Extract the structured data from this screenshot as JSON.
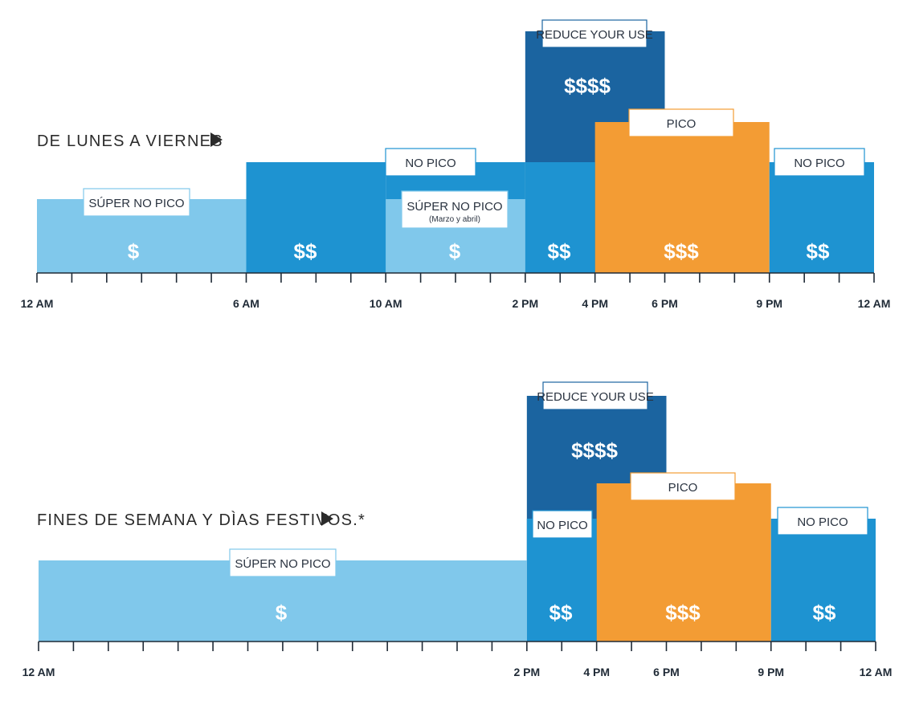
{
  "chart_data": [
    {
      "type": "bar",
      "title": "DE LUNES A VIERNES",
      "x_unit": "hour of day",
      "xlim": [
        0,
        24
      ],
      "ticks": [
        0,
        1,
        2,
        3,
        4,
        5,
        6,
        7,
        8,
        9,
        10,
        11,
        12,
        13,
        14,
        15,
        16,
        17,
        18,
        19,
        20,
        21,
        22,
        23,
        24
      ],
      "tick_labels": [
        {
          "hour": 0,
          "label": "12 AM"
        },
        {
          "hour": 6,
          "label": "6 AM"
        },
        {
          "hour": 10,
          "label": "10 AM"
        },
        {
          "hour": 14,
          "label": "2 PM"
        },
        {
          "hour": 16,
          "label": "4 PM"
        },
        {
          "hour": 18,
          "label": "6 PM"
        },
        {
          "hour": 21,
          "label": "9 PM"
        },
        {
          "hour": 24,
          "label": "12 AM"
        }
      ],
      "ylim": [
        0,
        4
      ],
      "segments": [
        {
          "start": 0,
          "end": 6,
          "level": 1,
          "color": "#80c8eb",
          "price": "$",
          "label": "SÚPER NO PICO",
          "sub": ""
        },
        {
          "start": 6,
          "end": 10,
          "level": 2,
          "color": "#1e93d1",
          "price": "$$",
          "label": "",
          "sub": ""
        },
        {
          "start": 10,
          "end": 14,
          "level": 2,
          "color": "#1e93d1",
          "price": "",
          "label": "NO PICO",
          "sub": ""
        },
        {
          "start": 10,
          "end": 14,
          "level": 1,
          "color": "#80c8eb",
          "price": "$",
          "label": "SÚPER NO PICO",
          "sub": "(Marzo y abril)"
        },
        {
          "start": 14,
          "end": 16,
          "level": 2,
          "color": "#1e93d1",
          "price": "$$",
          "label": "",
          "sub": ""
        },
        {
          "start": 14,
          "end": 18,
          "level": 4,
          "color": "#1b64a0",
          "price": "$$$$",
          "label": "REDUCE YOUR USE",
          "sub": ""
        },
        {
          "start": 16,
          "end": 21,
          "level": 3,
          "color": "#f39c34",
          "price": "$$$",
          "label": "PICO",
          "sub": ""
        },
        {
          "start": 21,
          "end": 24,
          "level": 2,
          "color": "#1e93d1",
          "price": "$$",
          "label": "NO PICO",
          "sub": ""
        }
      ]
    },
    {
      "type": "bar",
      "title": "FINES DE SEMANA Y DÌAS FESTIVOS.*",
      "x_unit": "hour of day",
      "xlim": [
        0,
        24
      ],
      "ticks": [
        0,
        1,
        2,
        3,
        4,
        5,
        6,
        7,
        8,
        9,
        10,
        11,
        12,
        13,
        14,
        15,
        16,
        17,
        18,
        19,
        20,
        21,
        22,
        23,
        24
      ],
      "tick_labels": [
        {
          "hour": 0,
          "label": "12 AM"
        },
        {
          "hour": 14,
          "label": "2 PM"
        },
        {
          "hour": 16,
          "label": "4 PM"
        },
        {
          "hour": 18,
          "label": "6 PM"
        },
        {
          "hour": 21,
          "label": "9 PM"
        },
        {
          "hour": 24,
          "label": "12 AM"
        }
      ],
      "ylim": [
        0,
        4
      ],
      "segments": [
        {
          "start": 0,
          "end": 14,
          "level": 1,
          "color": "#80c8eb",
          "price": "$",
          "label": "SÚPER NO PICO",
          "sub": ""
        },
        {
          "start": 14,
          "end": 18,
          "level": 4,
          "color": "#1b64a0",
          "price": "$$$$",
          "label": "REDUCE YOUR USE",
          "sub": ""
        },
        {
          "start": 14,
          "end": 16,
          "level": 2,
          "color": "#1e93d1",
          "price": "$$",
          "label": "NO PICO",
          "sub": ""
        },
        {
          "start": 16,
          "end": 21,
          "level": 3,
          "color": "#f39c34",
          "price": "$$$",
          "label": "PICO",
          "sub": ""
        },
        {
          "start": 21,
          "end": 24,
          "level": 2,
          "color": "#1e93d1",
          "price": "$$",
          "label": "NO PICO",
          "sub": ""
        }
      ]
    }
  ]
}
